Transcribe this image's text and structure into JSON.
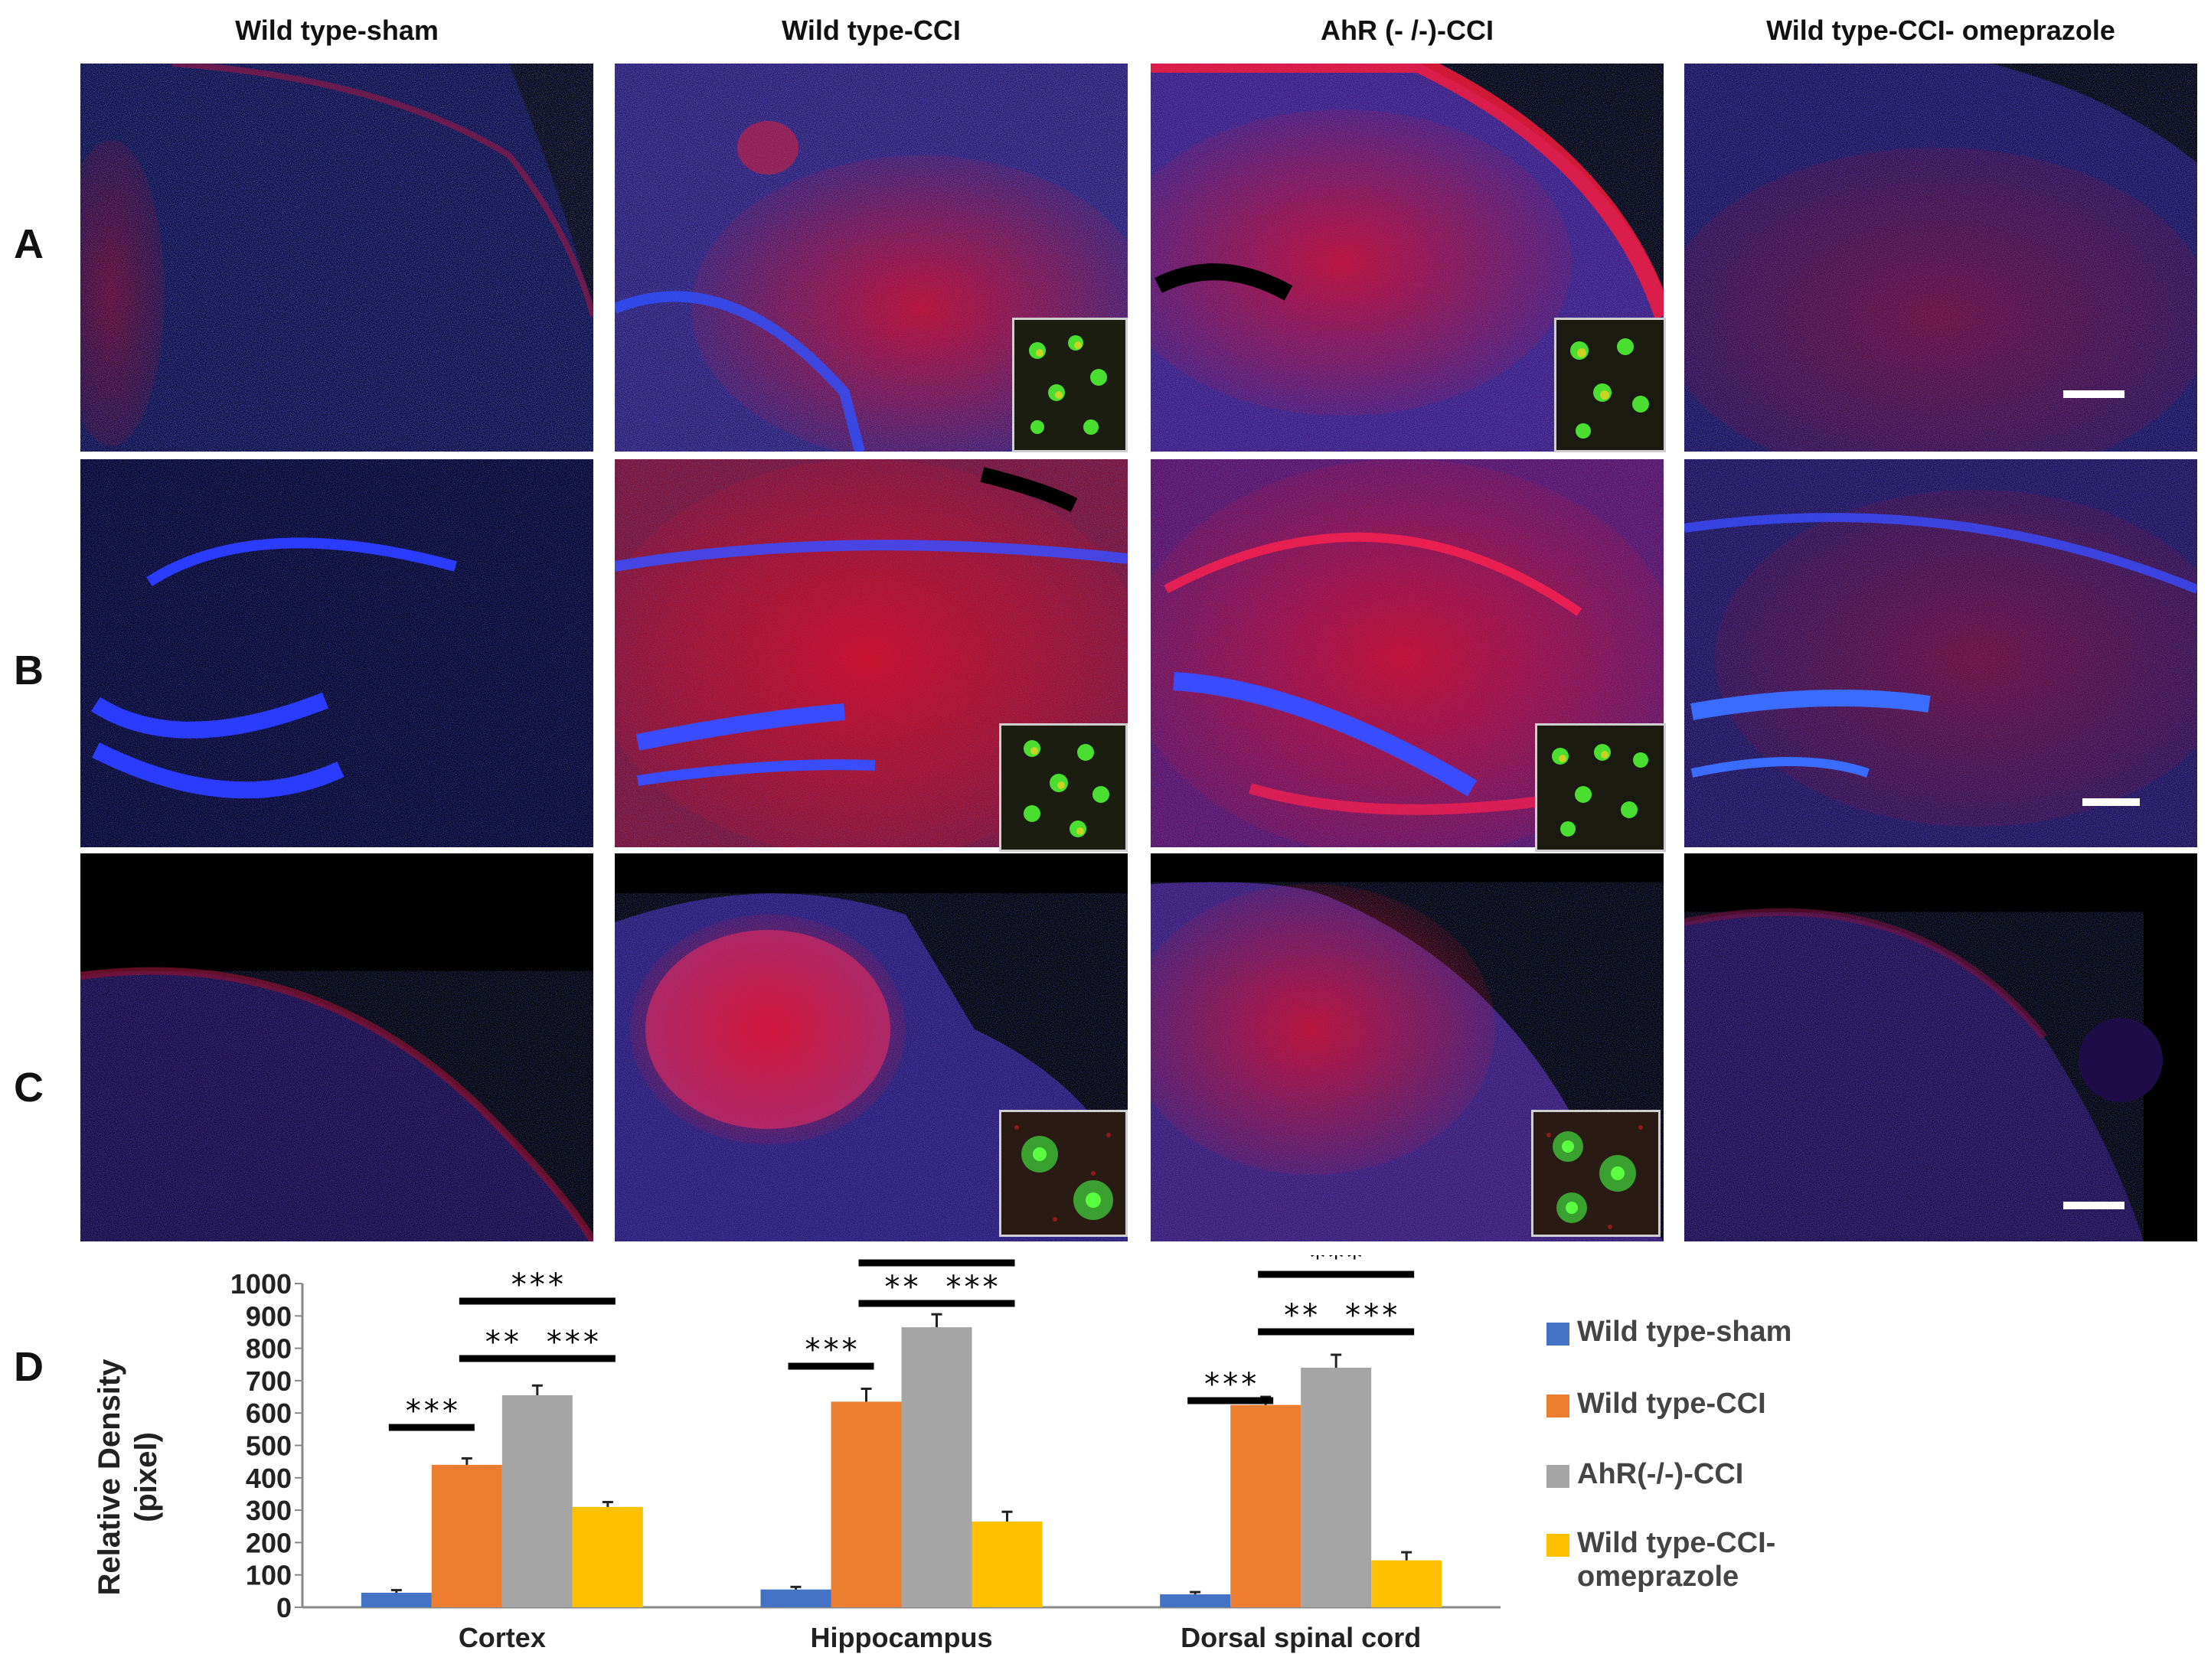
{
  "columns": [
    {
      "title": "Wild type-sham"
    },
    {
      "title": "Wild type-CCI"
    },
    {
      "title": "AhR (- /-)-CCI"
    },
    {
      "title": "Wild type-CCI- omeprazole"
    }
  ],
  "rows": [
    {
      "label": "A"
    },
    {
      "label": "B"
    },
    {
      "label": "C"
    },
    {
      "label": "D"
    }
  ],
  "colors": {
    "sham": "#4472C4",
    "cci": "#ED7D31",
    "ahr": "#A5A5A5",
    "omeprazole": "#FFC000",
    "dapi": "#2a3cff",
    "stain": "#e0102a",
    "marker": "#39e020"
  },
  "chart_data": {
    "type": "bar",
    "ylabel": "Relative Density (pixel)",
    "ylim": [
      0,
      1000
    ],
    "yticks": [
      "0",
      "100",
      "200",
      "300",
      "400",
      "500",
      "600",
      "700",
      "800",
      "900",
      "1000"
    ],
    "categories": [
      "Cortex",
      "Hippocampus",
      "Dorsal spinal cord"
    ],
    "series": [
      {
        "name": "Wild type-sham",
        "values": [
          45,
          55,
          40
        ],
        "errors": [
          8,
          8,
          7
        ]
      },
      {
        "name": "Wild type-CCI",
        "values": [
          440,
          635,
          625
        ],
        "errors": [
          20,
          40,
          25
        ]
      },
      {
        "name": "AhR(-/-)-CCI",
        "values": [
          655,
          865,
          740
        ],
        "errors": [
          30,
          40,
          40
        ]
      },
      {
        "name": "Wild type-CCI- omeprazole",
        "values": [
          310,
          265,
          145
        ],
        "errors": [
          15,
          30,
          25
        ]
      }
    ],
    "legend_position": "right",
    "grid": false,
    "significance": [
      {
        "category": 0,
        "from": 0,
        "to": 1,
        "label": "***",
        "level": 1
      },
      {
        "category": 0,
        "from": 1,
        "to": 2,
        "label": "**",
        "level": 2
      },
      {
        "category": 0,
        "from": 2,
        "to": 3,
        "label": "***",
        "level": 2
      },
      {
        "category": 0,
        "from": 1,
        "to": 3,
        "label": "***",
        "level": 3
      },
      {
        "category": 1,
        "from": 0,
        "to": 1,
        "label": "***",
        "level": 1
      },
      {
        "category": 1,
        "from": 1,
        "to": 2,
        "label": "**",
        "level": 2
      },
      {
        "category": 1,
        "from": 2,
        "to": 3,
        "label": "***",
        "level": 2
      },
      {
        "category": 1,
        "from": 1,
        "to": 3,
        "label": "***",
        "level": 3
      },
      {
        "category": 2,
        "from": 0,
        "to": 1,
        "label": "***",
        "level": 1
      },
      {
        "category": 2,
        "from": 1,
        "to": 2,
        "label": "**",
        "level": 2
      },
      {
        "category": 2,
        "from": 2,
        "to": 3,
        "label": "***",
        "level": 2
      },
      {
        "category": 2,
        "from": 1,
        "to": 3,
        "label": "***",
        "level": 3
      }
    ]
  }
}
